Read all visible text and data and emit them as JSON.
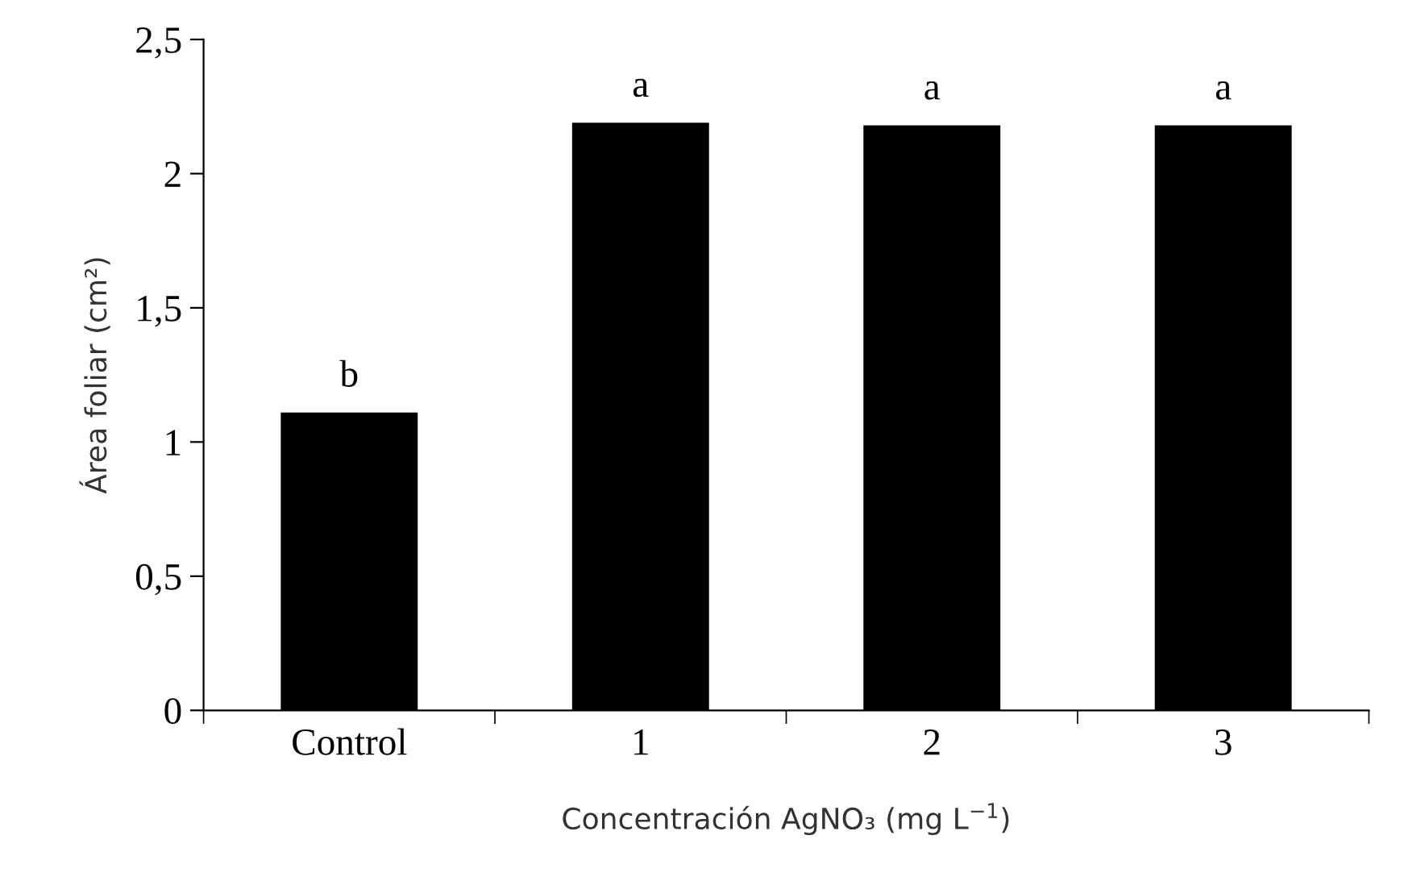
{
  "chart_data": {
    "type": "bar",
    "xlabel": "Concentración AgNO₃ (mg L$^{−1}$)",
    "ylabel": "Área foliar (cm²)",
    "categories": [
      "Control",
      "1",
      "2",
      "3"
    ],
    "values": [
      1.11,
      2.19,
      2.18,
      2.18
    ],
    "color": "#000000",
    "ylim": [
      0,
      2.5
    ],
    "yticks": [
      0,
      {
        "value": 0.5,
        "label": "0,5"
      },
      1,
      {
        "value": 1.5,
        "label": "1,5"
      },
      2,
      {
        "value": 2.5,
        "label": "2,5"
      }
    ],
    "annotations": [
      {
        "text": "b",
        "x": "Control",
        "y": 1.11
      },
      {
        "text": "a",
        "x": "1",
        "y": 2.19
      },
      {
        "text": "a",
        "x": "2",
        "y": 2.18
      },
      {
        "text": "a",
        "x": "3",
        "y": 2.18
      }
    ],
    "grid": false,
    "legend": false
  }
}
